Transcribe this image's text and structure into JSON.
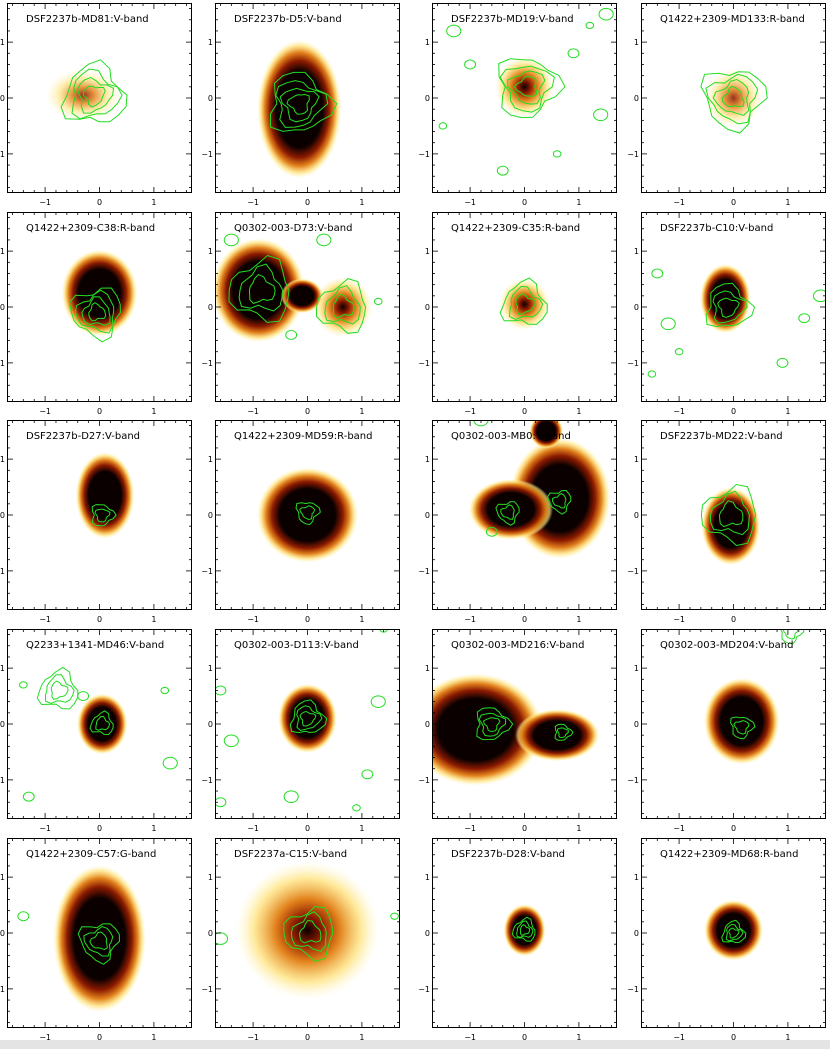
{
  "figure": {
    "panels": [
      {
        "title": "DSF2237b-MD81:V-band"
      },
      {
        "title": "DSF2237b-D5:V-band"
      },
      {
        "title": "DSF2237b-MD19:V-band"
      },
      {
        "title": "Q1422+2309-MD133:R-band"
      },
      {
        "title": "Q1422+2309-C38:R-band"
      },
      {
        "title": "Q0302-003-D73:V-band"
      },
      {
        "title": "Q1422+2309-C35:R-band"
      },
      {
        "title": "DSF2237b-C10:V-band"
      },
      {
        "title": "DSF2237b-D27:V-band"
      },
      {
        "title": "Q1422+2309-MD59:R-band"
      },
      {
        "title": "Q0302-003-MB0:V-band"
      },
      {
        "title": "DSF2237b-MD22:V-band"
      },
      {
        "title": "Q2233+1341-MD46:V-band"
      },
      {
        "title": "Q0302-003-D113:V-band"
      },
      {
        "title": "Q0302-003-MD216:V-band"
      },
      {
        "title": "Q0302-003-MD204:V-band"
      },
      {
        "title": "Q1422+2309-C57:G-band"
      },
      {
        "title": "DSF2237a-C15:V-band"
      },
      {
        "title": "DSF2237b-D28:V-band"
      },
      {
        "title": "Q1422+2309-MD68:R-band"
      }
    ],
    "axis": {
      "xlim": [
        -1.7,
        1.7
      ],
      "ylim": [
        -1.7,
        1.7
      ],
      "xticks": [
        "−1",
        "0",
        "1"
      ],
      "yticks": [
        "1",
        "0",
        "−1"
      ]
    },
    "colors": {
      "contour": "#22dd22",
      "frame": "#000000",
      "core": "#0a0000",
      "hot": "#8b1a00",
      "warm": "#e07b10",
      "glow": "#ffe070",
      "halo": "#fff6c0"
    }
  }
}
